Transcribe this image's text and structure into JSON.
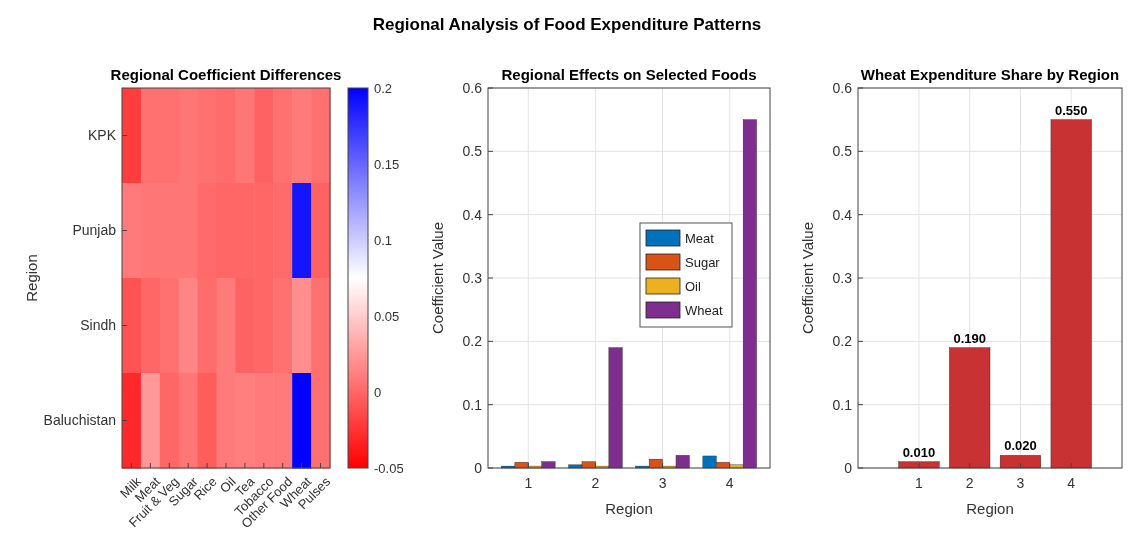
{
  "chart_data": [
    {
      "type": "heatmap",
      "title": "Regional Coefficient Differences",
      "ylabel": "Region",
      "annotations": [
        "Regional Analysis of Food Expenditure Patterns"
      ],
      "categories": [
        "Milk",
        "Meat",
        "Fruit & Veg",
        "Sugar",
        "Rice",
        "Oil",
        "Tea",
        "Tobacco",
        "Other Food",
        "Wheat",
        "Pulses"
      ],
      "y_categories": [
        "KPK",
        "Punjab",
        "Sindh",
        "Baluchistan"
      ],
      "cells": [
        [
          -0.02,
          0.005,
          0.005,
          0.008,
          0.005,
          0.003,
          0.008,
          -0.002,
          0.005,
          0.01,
          0.005
        ],
        [
          0.01,
          0.008,
          0.008,
          0.008,
          0.002,
          0.0,
          0.0,
          0.0,
          0.002,
          0.19,
          -0.002
        ],
        [
          -0.01,
          0.0,
          0.005,
          0.015,
          0.003,
          0.01,
          -0.002,
          0.0,
          0.005,
          0.02,
          0.005
        ],
        [
          -0.03,
          0.025,
          0.0,
          0.008,
          -0.005,
          0.01,
          0.012,
          0.01,
          0.01,
          0.2,
          0.005
        ]
      ],
      "clim": [
        -0.05,
        0.2
      ],
      "cticks": [
        -0.05,
        0,
        0.05,
        0.1,
        0.15,
        0.2
      ]
    },
    {
      "type": "bar",
      "title": "Regional Effects on Selected Foods",
      "xlabel": "Region",
      "ylabel": "Coefficient Value",
      "categories": [
        "1",
        "2",
        "3",
        "4"
      ],
      "series": [
        {
          "name": "Meat",
          "color": "#0072bd",
          "values": [
            0.003,
            0.005,
            0.003,
            0.019
          ]
        },
        {
          "name": "Sugar",
          "color": "#d95319",
          "values": [
            0.009,
            0.01,
            0.014,
            0.009
          ]
        },
        {
          "name": "Oil",
          "color": "#edb120",
          "values": [
            0.003,
            0.003,
            0.003,
            0.005
          ]
        },
        {
          "name": "Wheat",
          "color": "#7e2f8e",
          "values": [
            0.01,
            0.19,
            0.02,
            0.55
          ]
        }
      ],
      "ylim": [
        0,
        0.6
      ],
      "yticks": [
        0,
        0.1,
        0.2,
        0.3,
        0.4,
        0.5,
        0.6
      ],
      "grid": true,
      "legend": "right"
    },
    {
      "type": "bar",
      "title": "Wheat Expenditure Share by Region",
      "xlabel": "Region",
      "ylabel": "Coefficient Value",
      "x": [
        1,
        2,
        3,
        4
      ],
      "values": [
        0.01,
        0.19,
        0.02,
        0.55
      ],
      "value_labels": [
        "0.010",
        "0.190",
        "0.020",
        "0.550"
      ],
      "color": "#c83232",
      "xlim": [
        -0.2,
        5
      ],
      "xticks": [
        1,
        2,
        3,
        4
      ],
      "ylim": [
        0,
        0.6
      ],
      "yticks": [
        0,
        0.1,
        0.2,
        0.3,
        0.4,
        0.5,
        0.6
      ],
      "grid": true
    }
  ]
}
